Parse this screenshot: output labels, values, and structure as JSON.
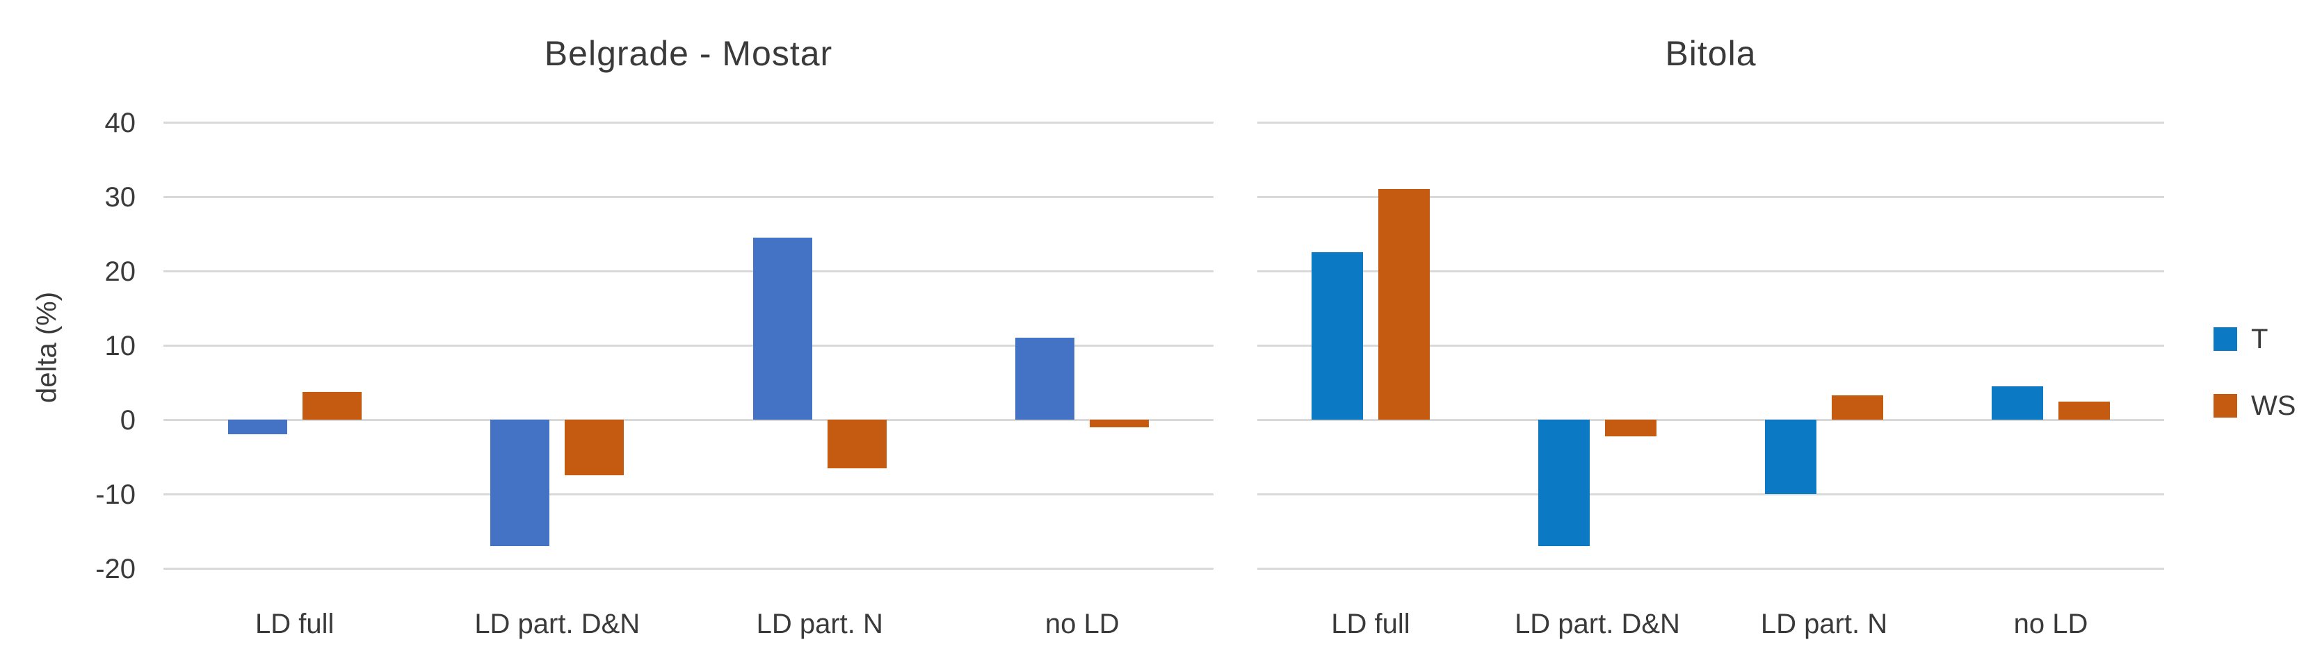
{
  "figure": {
    "background": "#ffffff",
    "gridline_color": "#d9d9d9",
    "text_color": "#3a3a3a"
  },
  "y_axis": {
    "title": "delta (%)",
    "tick_labels": [
      "40",
      "30",
      "20",
      "10",
      "0",
      "-10",
      "-20"
    ]
  },
  "legend": {
    "position": "right",
    "items": [
      {
        "label": "T",
        "color": "#0b79c3"
      },
      {
        "label": "WS",
        "color": "#c55a11"
      }
    ]
  },
  "chart_data": [
    {
      "type": "bar",
      "title": "Belgrade - Mostar",
      "xlabel": "",
      "ylabel": "delta (%)",
      "categories": [
        "LD full",
        "LD part. D&N",
        "LD part. N",
        "no LD"
      ],
      "series": [
        {
          "name": "T",
          "color": "#4472c4",
          "values": [
            -2,
            -17,
            24.5,
            11
          ]
        },
        {
          "name": "WS",
          "color": "#c55a11",
          "values": [
            3.7,
            -7.5,
            -6.5,
            -1
          ]
        }
      ],
      "ylim": [
        -20,
        40
      ],
      "yticks": [
        40,
        30,
        20,
        10,
        0,
        -10,
        -20
      ],
      "grid": true,
      "show_y_tick_labels": true,
      "legend_position": "none"
    },
    {
      "type": "bar",
      "title": "Bitola",
      "xlabel": "",
      "ylabel": "",
      "categories": [
        "LD full",
        "LD part. D&N",
        "LD part. N",
        "no LD"
      ],
      "series": [
        {
          "name": "T",
          "color": "#0b79c3",
          "values": [
            22.5,
            -17,
            -10,
            4.5
          ]
        },
        {
          "name": "WS",
          "color": "#c55a11",
          "values": [
            31,
            -2.2,
            3.3,
            2.4
          ]
        }
      ],
      "ylim": [
        -20,
        40
      ],
      "yticks": [
        40,
        30,
        20,
        10,
        0,
        -10,
        -20
      ],
      "grid": true,
      "show_y_tick_labels": false,
      "legend_position": "right"
    }
  ]
}
